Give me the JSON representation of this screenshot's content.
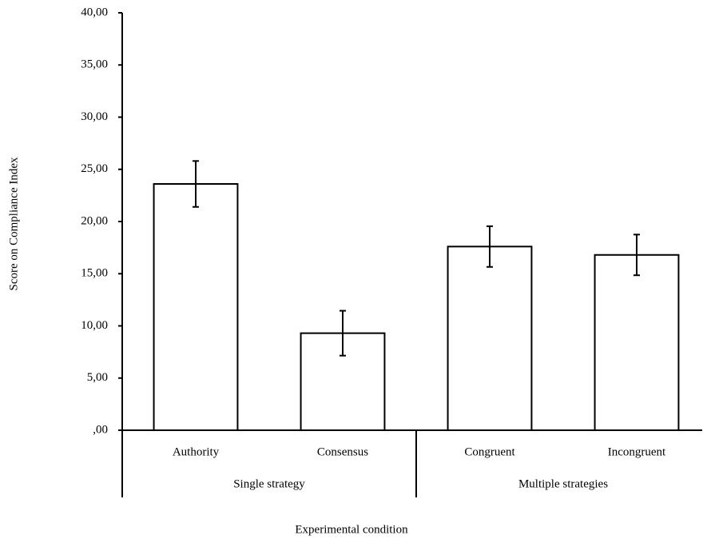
{
  "chart_data": {
    "type": "bar",
    "x_label": "Experimental condition",
    "y_label": "Score on Compliance Index",
    "categories": [
      "Authority",
      "Consensus",
      "Congruent",
      "Incongruent"
    ],
    "groups": [
      "Single strategy",
      "Single strategy",
      "Multiple strategies",
      "Multiple strategies"
    ],
    "values": [
      23.6,
      9.3,
      17.6,
      16.8
    ],
    "errors": [
      2.2,
      2.15,
      1.95,
      1.95
    ],
    "color": "#ffffff",
    "ylim": [
      0,
      40
    ],
    "yticks": [
      {
        "value": 0,
        "label": ",00"
      },
      {
        "value": 5,
        "label": "5,00"
      },
      {
        "value": 10,
        "label": "10,00"
      },
      {
        "value": 15,
        "label": "15,00"
      },
      {
        "value": 20,
        "label": "20,00"
      },
      {
        "value": 25,
        "label": "25,00"
      },
      {
        "value": 30,
        "label": "30,00"
      },
      {
        "value": 35,
        "label": "35,00"
      },
      {
        "value": 40,
        "label": "40,00"
      }
    ],
    "grid": false
  }
}
